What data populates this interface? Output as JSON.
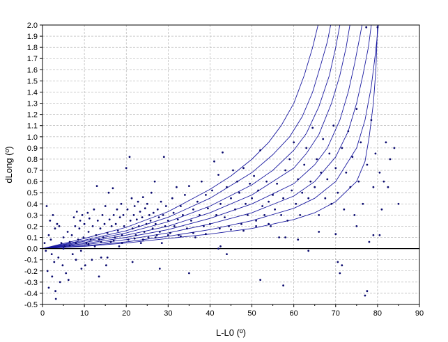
{
  "chart_data": {
    "type": "scatter",
    "xlabel": "L-L0 (º)",
    "ylabel": "dLong (º)",
    "xlim": [
      0,
      90
    ],
    "ylim": [
      -0.5,
      2.0
    ],
    "xticks": [
      "0",
      "10",
      "20",
      "30",
      "40",
      "50",
      "60",
      "70",
      "80",
      "90"
    ],
    "yticks": [
      "-0.5",
      "-0.4",
      "-0.3",
      "-0.2",
      "-0.1",
      "0.0",
      "0.1",
      "0.2",
      "0.3",
      "0.4",
      "0.5",
      "0.6",
      "0.7",
      "0.8",
      "0.9",
      "1.0",
      "1.1",
      "1.2",
      "1.3",
      "1.4",
      "1.5",
      "1.6",
      "1.7",
      "1.8",
      "1.9",
      "2.0"
    ],
    "grid": true,
    "colors": {
      "points": "#0a0a6e",
      "curves": "#1a1aa0",
      "zero_line": "#000000",
      "grid": "#aaaaaa"
    },
    "curve_series": [
      {
        "values": [
          [
            0,
            0
          ],
          [
            10,
            0.02
          ],
          [
            20,
            0.05
          ],
          [
            30,
            0.09
          ],
          [
            40,
            0.13
          ],
          [
            50,
            0.18
          ],
          [
            60,
            0.26
          ],
          [
            65,
            0.32
          ],
          [
            70,
            0.42
          ],
          [
            75,
            0.6
          ],
          [
            77,
            0.78
          ],
          [
            78,
            1.0
          ],
          [
            79,
            1.3
          ],
          [
            79.6,
            1.6
          ],
          [
            80,
            2.0
          ]
        ]
      },
      {
        "values": [
          [
            0,
            0
          ],
          [
            10,
            0.025
          ],
          [
            20,
            0.06
          ],
          [
            30,
            0.11
          ],
          [
            40,
            0.17
          ],
          [
            50,
            0.25
          ],
          [
            60,
            0.36
          ],
          [
            65,
            0.45
          ],
          [
            70,
            0.6
          ],
          [
            75,
            0.9
          ],
          [
            77,
            1.15
          ],
          [
            78.5,
            1.45
          ],
          [
            79.5,
            1.75
          ],
          [
            80.2,
            2.0
          ]
        ]
      },
      {
        "values": [
          [
            0,
            0
          ],
          [
            10,
            0.035
          ],
          [
            20,
            0.08
          ],
          [
            30,
            0.14
          ],
          [
            40,
            0.22
          ],
          [
            50,
            0.32
          ],
          [
            60,
            0.47
          ],
          [
            65,
            0.6
          ],
          [
            70,
            0.82
          ],
          [
            73,
            1.05
          ],
          [
            75,
            1.3
          ],
          [
            76.5,
            1.55
          ],
          [
            77.8,
            1.8
          ],
          [
            78.5,
            2.0
          ]
        ]
      },
      {
        "values": [
          [
            0,
            0
          ],
          [
            10,
            0.045
          ],
          [
            20,
            0.1
          ],
          [
            30,
            0.17
          ],
          [
            40,
            0.27
          ],
          [
            50,
            0.4
          ],
          [
            60,
            0.58
          ],
          [
            65,
            0.75
          ],
          [
            68,
            0.9
          ],
          [
            71,
            1.15
          ],
          [
            73,
            1.4
          ],
          [
            74.5,
            1.65
          ],
          [
            75.8,
            1.9
          ],
          [
            76.3,
            2.0
          ]
        ]
      },
      {
        "values": [
          [
            0,
            0
          ],
          [
            10,
            0.055
          ],
          [
            20,
            0.12
          ],
          [
            30,
            0.2
          ],
          [
            40,
            0.32
          ],
          [
            50,
            0.48
          ],
          [
            60,
            0.72
          ],
          [
            63,
            0.85
          ],
          [
            66,
            1.02
          ],
          [
            69,
            1.3
          ],
          [
            71,
            1.55
          ],
          [
            72.5,
            1.8
          ],
          [
            73.4,
            2.0
          ]
        ]
      },
      {
        "values": [
          [
            0,
            0
          ],
          [
            10,
            0.065
          ],
          [
            20,
            0.14
          ],
          [
            30,
            0.24
          ],
          [
            40,
            0.38
          ],
          [
            50,
            0.57
          ],
          [
            55,
            0.7
          ],
          [
            60,
            0.88
          ],
          [
            63,
            1.03
          ],
          [
            66,
            1.27
          ],
          [
            68.5,
            1.55
          ],
          [
            70,
            1.8
          ],
          [
            71,
            2.0
          ]
        ]
      },
      {
        "values": [
          [
            0,
            0
          ],
          [
            10,
            0.075
          ],
          [
            20,
            0.16
          ],
          [
            30,
            0.28
          ],
          [
            40,
            0.45
          ],
          [
            50,
            0.68
          ],
          [
            55,
            0.84
          ],
          [
            59,
            1.0
          ],
          [
            62,
            1.18
          ],
          [
            64.5,
            1.4
          ],
          [
            66.5,
            1.65
          ],
          [
            68,
            1.85
          ],
          [
            68.8,
            2.0
          ]
        ]
      },
      {
        "values": [
          [
            0,
            0
          ],
          [
            10,
            0.09
          ],
          [
            20,
            0.19
          ],
          [
            30,
            0.33
          ],
          [
            40,
            0.53
          ],
          [
            45,
            0.65
          ],
          [
            50,
            0.8
          ],
          [
            54,
            0.95
          ],
          [
            57,
            1.1
          ],
          [
            60,
            1.3
          ],
          [
            62.5,
            1.55
          ],
          [
            64.5,
            1.8
          ],
          [
            65.8,
            2.0
          ]
        ]
      }
    ],
    "points": [
      [
        0.5,
        0.05
      ],
      [
        0.8,
        -0.02
      ],
      [
        1,
        0.38
      ],
      [
        1.2,
        -0.2
      ],
      [
        1.5,
        0.12
      ],
      [
        1.8,
        0.25
      ],
      [
        2,
        0.08
      ],
      [
        2.2,
        -0.05
      ],
      [
        2.5,
        0.3
      ],
      [
        2.8,
        -0.12
      ],
      [
        3,
        0.18
      ],
      [
        3.2,
        -0.45
      ],
      [
        3.5,
        0.22
      ],
      [
        3.8,
        -0.08
      ],
      [
        4,
        0.2
      ],
      [
        4.2,
        -0.3
      ],
      [
        4.5,
        0.05
      ],
      [
        4.8,
        -0.15
      ],
      [
        5,
        0.1
      ],
      [
        5.3,
        0.02
      ],
      [
        5.6,
        -0.22
      ],
      [
        6,
        0.15
      ],
      [
        6.2,
        -0.28
      ],
      [
        6.5,
        0.06
      ],
      [
        7,
        0.12
      ],
      [
        7.2,
        -0.05
      ],
      [
        7.5,
        0.28
      ],
      [
        7.8,
        0.2
      ],
      [
        8,
        -0.1
      ],
      [
        8.2,
        0.33
      ],
      [
        8.5,
        0.08
      ],
      [
        8.8,
        0.18
      ],
      [
        9,
        0.25
      ],
      [
        9.2,
        -0.02
      ],
      [
        9.5,
        0.3
      ],
      [
        9.8,
        0.1
      ],
      [
        10,
        0.22
      ],
      [
        10.2,
        -0.15
      ],
      [
        10.5,
        0.05
      ],
      [
        10.8,
        0.32
      ],
      [
        11,
        0.15
      ],
      [
        11.2,
        0.27
      ],
      [
        11.5,
        0.08
      ],
      [
        11.8,
        -0.1
      ],
      [
        12,
        0.2
      ],
      [
        12.3,
        0.35
      ],
      [
        12.5,
        0.02
      ],
      [
        12.8,
        0.12
      ],
      [
        13,
        0.56
      ],
      [
        13.2,
        0.25
      ],
      [
        13.5,
        0.08
      ],
      [
        13.8,
        0.18
      ],
      [
        14,
        -0.08
      ],
      [
        14.3,
        0.3
      ],
      [
        14.5,
        0.1
      ],
      [
        14.8,
        0.22
      ],
      [
        15,
        0.38
      ],
      [
        15.2,
        -0.15
      ],
      [
        15.5,
        0.14
      ],
      [
        15.8,
        0.5
      ],
      [
        16,
        0.26
      ],
      [
        16.3,
        0.06
      ],
      [
        16.5,
        0.2
      ],
      [
        16.8,
        0.54
      ],
      [
        17,
        0.3
      ],
      [
        17.3,
        0.1
      ],
      [
        17.5,
        0.22
      ],
      [
        17.8,
        0.35
      ],
      [
        18,
        0.16
      ],
      [
        18.3,
        0.02
      ],
      [
        18.5,
        0.28
      ],
      [
        18.8,
        0.4
      ],
      [
        19,
        0.12
      ],
      [
        19.3,
        0.3
      ],
      [
        19.5,
        0.2
      ],
      [
        20,
        0.72
      ],
      [
        20.3,
        0.35
      ],
      [
        20.5,
        0.08
      ],
      [
        20.8,
        0.82
      ],
      [
        21,
        0.25
      ],
      [
        21.3,
        0.45
      ],
      [
        21.5,
        0.18
      ],
      [
        21.8,
        0.3
      ],
      [
        22,
        0.38
      ],
      [
        22.3,
        0.12
      ],
      [
        22.5,
        0.26
      ],
      [
        22.8,
        0.42
      ],
      [
        23,
        0.2
      ],
      [
        23.3,
        0.33
      ],
      [
        23.5,
        0.05
      ],
      [
        23.8,
        0.28
      ],
      [
        24,
        0.46
      ],
      [
        24.3,
        0.15
      ],
      [
        24.5,
        0.36
      ],
      [
        24.8,
        0.22
      ],
      [
        25,
        0.4
      ],
      [
        25.3,
        0.1
      ],
      [
        25.5,
        0.3
      ],
      [
        25.8,
        0.25
      ],
      [
        26,
        0.5
      ],
      [
        26.3,
        0.18
      ],
      [
        26.5,
        0.32
      ],
      [
        26.8,
        0.6
      ],
      [
        27,
        0.22
      ],
      [
        27.3,
        0.12
      ],
      [
        27.5,
        0.35
      ],
      [
        27.8,
        0.28
      ],
      [
        28,
        0.15
      ],
      [
        28.3,
        0.42
      ],
      [
        28.5,
        0.05
      ],
      [
        28.8,
        0.3
      ],
      [
        29,
        0.82
      ],
      [
        29.3,
        0.2
      ],
      [
        29.5,
        0.38
      ],
      [
        30,
        0.25
      ],
      [
        30.5,
        0.14
      ],
      [
        31,
        0.45
      ],
      [
        31.3,
        0.32
      ],
      [
        31.5,
        0.2
      ],
      [
        32,
        0.55
      ],
      [
        32.3,
        0.26
      ],
      [
        32.5,
        0.12
      ],
      [
        33,
        0.38
      ],
      [
        33.5,
        0.3
      ],
      [
        34,
        0.48
      ],
      [
        34.5,
        0.18
      ],
      [
        35,
        0.56
      ],
      [
        35.5,
        0.25
      ],
      [
        36,
        0.35
      ],
      [
        36.5,
        0.1
      ],
      [
        37,
        0.42
      ],
      [
        37.5,
        0.3
      ],
      [
        38,
        0.6
      ],
      [
        38.5,
        0.2
      ],
      [
        39,
        0.48
      ],
      [
        39.5,
        0.36
      ],
      [
        40,
        0.22
      ],
      [
        40.5,
        0.52
      ],
      [
        41,
        0.78
      ],
      [
        41.5,
        0.3
      ],
      [
        42,
        0.66
      ],
      [
        42.3,
        0.18
      ],
      [
        42.5,
        0.4
      ],
      [
        43,
        0.86
      ],
      [
        43.5,
        0.28
      ],
      [
        44,
        0.55
      ],
      [
        44.5,
        0.2
      ],
      [
        45,
        0.45
      ],
      [
        45.5,
        0.7
      ],
      [
        46,
        0.35
      ],
      [
        46.5,
        0.6
      ],
      [
        47,
        0.5
      ],
      [
        47.5,
        0.22
      ],
      [
        48,
        0.72
      ],
      [
        48.5,
        0.4
      ],
      [
        49,
        0.3
      ],
      [
        49.5,
        0.58
      ],
      [
        50,
        0.45
      ],
      [
        50.5,
        0.65
      ],
      [
        51,
        0.25
      ],
      [
        51.5,
        0.52
      ],
      [
        52,
        0.88
      ],
      [
        52.5,
        0.38
      ],
      [
        53,
        0.3
      ],
      [
        53.5,
        0.6
      ],
      [
        54,
        0.42
      ],
      [
        54.5,
        0.2
      ],
      [
        55,
        0.48
      ],
      [
        55.5,
        0.35
      ],
      [
        56,
        0.58
      ],
      [
        56.5,
        0.1
      ],
      [
        57,
        0.3
      ],
      [
        57.5,
        0.45
      ],
      [
        58,
        0.7
      ],
      [
        58.5,
        0.25
      ],
      [
        59,
        0.8
      ],
      [
        59.5,
        0.52
      ],
      [
        60,
        0.95
      ],
      [
        60.5,
        0.4
      ],
      [
        61,
        0.62
      ],
      [
        61.5,
        0.3
      ],
      [
        62,
        0.5
      ],
      [
        62.5,
        0.75
      ],
      [
        63,
        0.9
      ],
      [
        63.5,
        0.45
      ],
      [
        64,
        0.6
      ],
      [
        64.5,
        1.08
      ],
      [
        65,
        0.55
      ],
      [
        65.5,
        0.8
      ],
      [
        66,
        0.3
      ],
      [
        66.5,
        0.68
      ],
      [
        67,
        0.98
      ],
      [
        67.5,
        0.45
      ],
      [
        68,
        0.62
      ],
      [
        68.5,
        0.85
      ],
      [
        69,
        0.4
      ],
      [
        69.5,
        1.1
      ],
      [
        70,
        0.72
      ],
      [
        70.5,
        0.5
      ],
      [
        71,
        -0.22
      ],
      [
        71.5,
        0.9
      ],
      [
        72,
        0.35
      ],
      [
        72.5,
        0.68
      ],
      [
        73,
        1.05
      ],
      [
        73.5,
        0.55
      ],
      [
        74,
        0.82
      ],
      [
        74.5,
        0.3
      ],
      [
        75,
        1.25
      ],
      [
        75.5,
        0.6
      ],
      [
        76,
        0.95
      ],
      [
        76.5,
        0.4
      ],
      [
        77,
        -0.42
      ],
      [
        77.3,
        1.98
      ],
      [
        77.5,
        0.75
      ],
      [
        78,
        0.06
      ],
      [
        78.5,
        1.15
      ],
      [
        79,
        0.55
      ],
      [
        79.5,
        0.85
      ],
      [
        80,
        1.98
      ],
      [
        80.5,
        0.68
      ],
      [
        81,
        0.35
      ],
      [
        81.5,
        0.6
      ],
      [
        82,
        0.95
      ],
      [
        82.5,
        0.55
      ],
      [
        83,
        0.8
      ],
      [
        84,
        0.9
      ],
      [
        85,
        0.4
      ],
      [
        1.5,
        -0.35
      ],
      [
        2.3,
        -0.25
      ],
      [
        3.1,
        -0.38
      ],
      [
        9.3,
        -0.18
      ],
      [
        13.5,
        -0.25
      ],
      [
        15.5,
        -0.08
      ],
      [
        21.5,
        -0.12
      ],
      [
        28,
        -0.18
      ],
      [
        35,
        -0.22
      ],
      [
        44,
        -0.05
      ],
      [
        52,
        -0.28
      ],
      [
        57.5,
        -0.33
      ],
      [
        63.5,
        -0.02
      ],
      [
        70.5,
        -0.12
      ],
      [
        71.5,
        -0.15
      ],
      [
        77.5,
        -0.38
      ],
      [
        5,
        0.0
      ],
      [
        6.5,
        0.03
      ],
      [
        8,
        0.05
      ],
      [
        11,
        0.04
      ],
      [
        14,
        0.06
      ],
      [
        17,
        0.07
      ],
      [
        19,
        0.05
      ],
      [
        22,
        0.09
      ],
      [
        24,
        0.08
      ],
      [
        27,
        0.1
      ],
      [
        30,
        0.12
      ],
      [
        33,
        0.11
      ],
      [
        36,
        0.14
      ],
      [
        39,
        0.13
      ],
      [
        42,
        0.0
      ],
      [
        42.5,
        0.02
      ],
      [
        45,
        0.17
      ],
      [
        48,
        0.16
      ],
      [
        51,
        0.2
      ],
      [
        54,
        0.22
      ],
      [
        58,
        0.1
      ],
      [
        61,
        0.08
      ],
      [
        66,
        0.15
      ],
      [
        70,
        0.13
      ],
      [
        75,
        0.2
      ],
      [
        79,
        0.12
      ],
      [
        80.5,
        0.12
      ]
    ]
  }
}
